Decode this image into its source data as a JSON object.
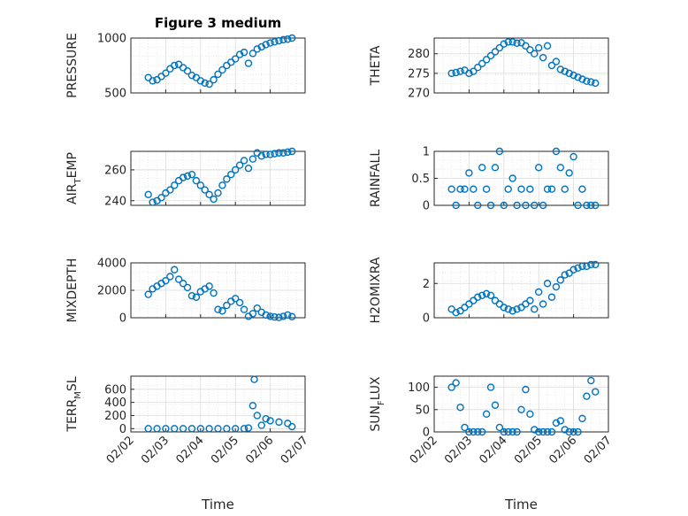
{
  "figure": {
    "title": "Figure 3 medium",
    "xlabel": "Time",
    "x_tick_labels": [
      "02/02",
      "02/03",
      "02/04",
      "02/05",
      "02/06",
      "02/07"
    ]
  },
  "colors": {
    "marker": "#0072BD",
    "axis": "#262626",
    "grid": "#dcdcdc"
  },
  "chart_data": [
    {
      "type": "scatter",
      "title": "Figure 3 medium",
      "ylabel": "PRESSURE",
      "ylabel_sub": "",
      "xlabel": "",
      "ylim": [
        500,
        1000
      ],
      "yticks": [
        500,
        1000
      ],
      "grid": true,
      "x": [
        "02/02 12:00",
        "02/02 15:00",
        "02/02 18:00",
        "02/02 21:00",
        "02/03 00:00",
        "02/03 03:00",
        "02/03 06:00",
        "02/03 09:00",
        "02/03 12:00",
        "02/03 15:00",
        "02/03 18:00",
        "02/03 21:00",
        "02/04 00:00",
        "02/04 03:00",
        "02/04 06:00",
        "02/04 09:00",
        "02/04 12:00",
        "02/04 15:00",
        "02/04 18:00",
        "02/04 21:00",
        "02/05 00:00",
        "02/05 03:00",
        "02/05 06:00",
        "02/05 09:00",
        "02/05 12:00",
        "02/05 15:00",
        "02/05 18:00",
        "02/05 21:00",
        "02/06 00:00",
        "02/06 03:00",
        "02/06 06:00",
        "02/06 09:00",
        "02/06 12:00",
        "02/06 15:00"
      ],
      "y": [
        640,
        610,
        620,
        650,
        680,
        720,
        750,
        760,
        730,
        700,
        660,
        640,
        610,
        590,
        580,
        620,
        670,
        710,
        750,
        780,
        810,
        850,
        870,
        770,
        860,
        900,
        920,
        940,
        955,
        965,
        975,
        985,
        990,
        1000
      ]
    },
    {
      "type": "scatter",
      "title": "",
      "ylabel": "THETA",
      "ylabel_sub": "",
      "xlabel": "",
      "ylim": [
        270,
        284
      ],
      "yticks": [
        270,
        275,
        280
      ],
      "grid": true,
      "x": [
        "02/02 12:00",
        "02/02 15:00",
        "02/02 18:00",
        "02/02 21:00",
        "02/03 00:00",
        "02/03 03:00",
        "02/03 06:00",
        "02/03 09:00",
        "02/03 12:00",
        "02/03 15:00",
        "02/03 18:00",
        "02/03 21:00",
        "02/04 00:00",
        "02/04 03:00",
        "02/04 06:00",
        "02/04 09:00",
        "02/04 12:00",
        "02/04 15:00",
        "02/04 18:00",
        "02/04 21:00",
        "02/05 00:00",
        "02/05 03:00",
        "02/05 06:00",
        "02/05 09:00",
        "02/05 12:00",
        "02/05 15:00",
        "02/05 18:00",
        "02/05 21:00",
        "02/06 00:00",
        "02/06 03:00",
        "02/06 06:00",
        "02/06 09:00",
        "02/06 12:00",
        "02/06 15:00"
      ],
      "y": [
        275,
        275.2,
        275.5,
        275.8,
        275,
        275.5,
        276.5,
        277.5,
        278.5,
        279.5,
        280.5,
        281.5,
        282.5,
        283,
        283,
        282.7,
        282.8,
        282,
        281,
        280,
        281.5,
        279,
        282,
        277,
        278,
        276,
        275.5,
        275,
        274.5,
        274,
        273.5,
        273,
        272.8,
        272.5
      ]
    },
    {
      "type": "scatter",
      "title": "",
      "ylabel": "AIR",
      "ylabel_sub": "T",
      "ylabel_rest": "EMP",
      "xlabel": "",
      "ylim": [
        237,
        272
      ],
      "yticks": [
        240,
        260
      ],
      "grid": true,
      "x": [
        "02/02 12:00",
        "02/02 15:00",
        "02/02 18:00",
        "02/02 21:00",
        "02/03 00:00",
        "02/03 03:00",
        "02/03 06:00",
        "02/03 09:00",
        "02/03 12:00",
        "02/03 15:00",
        "02/03 18:00",
        "02/03 21:00",
        "02/04 00:00",
        "02/04 03:00",
        "02/04 06:00",
        "02/04 09:00",
        "02/04 12:00",
        "02/04 15:00",
        "02/04 18:00",
        "02/04 21:00",
        "02/05 00:00",
        "02/05 03:00",
        "02/05 06:00",
        "02/05 09:00",
        "02/05 12:00",
        "02/05 15:00",
        "02/05 18:00",
        "02/05 21:00",
        "02/06 00:00",
        "02/06 03:00",
        "02/06 06:00",
        "02/06 09:00",
        "02/06 12:00",
        "02/06 15:00"
      ],
      "y": [
        244,
        239,
        240,
        242,
        245,
        247,
        250,
        253,
        255,
        256,
        257,
        253,
        250,
        247,
        244,
        241,
        245,
        250,
        254,
        257,
        260,
        263,
        266,
        261,
        267,
        271,
        269,
        270,
        270,
        270.5,
        271,
        271,
        271.5,
        272
      ]
    },
    {
      "type": "scatter",
      "title": "",
      "ylabel": "RAINFALL",
      "ylabel_sub": "",
      "xlabel": "",
      "ylim": [
        0,
        1
      ],
      "yticks": [
        0,
        0.5,
        1
      ],
      "grid": true,
      "x": [
        "02/02 12:00",
        "02/02 15:00",
        "02/02 18:00",
        "02/02 21:00",
        "02/03 00:00",
        "02/03 03:00",
        "02/03 06:00",
        "02/03 09:00",
        "02/03 12:00",
        "02/03 15:00",
        "02/03 18:00",
        "02/03 21:00",
        "02/04 00:00",
        "02/04 03:00",
        "02/04 06:00",
        "02/04 09:00",
        "02/04 12:00",
        "02/04 15:00",
        "02/04 18:00",
        "02/04 21:00",
        "02/05 00:00",
        "02/05 03:00",
        "02/05 06:00",
        "02/05 09:00",
        "02/05 12:00",
        "02/05 15:00",
        "02/05 18:00",
        "02/05 21:00",
        "02/06 00:00",
        "02/06 03:00",
        "02/06 06:00",
        "02/06 09:00",
        "02/06 12:00",
        "02/06 15:00"
      ],
      "y": [
        0.3,
        0,
        0.3,
        0.3,
        0.6,
        0.3,
        0,
        0.7,
        0.3,
        0,
        0.7,
        1,
        0,
        0.3,
        0.5,
        0,
        0.3,
        0,
        0.3,
        0,
        0.7,
        0,
        0.3,
        0.3,
        1,
        0.7,
        0.3,
        0.6,
        0.9,
        0,
        0.3,
        0,
        0,
        0
      ]
    },
    {
      "type": "scatter",
      "title": "",
      "ylabel": "MIXDEPTH",
      "ylabel_sub": "",
      "xlabel": "",
      "ylim": [
        0,
        4000
      ],
      "yticks": [
        0,
        2000,
        4000
      ],
      "grid": true,
      "x": [
        "02/02 12:00",
        "02/02 15:00",
        "02/02 18:00",
        "02/02 21:00",
        "02/03 00:00",
        "02/03 03:00",
        "02/03 06:00",
        "02/03 09:00",
        "02/03 12:00",
        "02/03 15:00",
        "02/03 18:00",
        "02/03 21:00",
        "02/04 00:00",
        "02/04 03:00",
        "02/04 06:00",
        "02/04 09:00",
        "02/04 12:00",
        "02/04 15:00",
        "02/04 18:00",
        "02/04 21:00",
        "02/05 00:00",
        "02/05 03:00",
        "02/05 06:00",
        "02/05 09:00",
        "02/05 12:00",
        "02/05 15:00",
        "02/05 18:00",
        "02/05 21:00",
        "02/06 00:00",
        "02/06 03:00",
        "02/06 06:00",
        "02/06 09:00",
        "02/06 12:00",
        "02/06 15:00"
      ],
      "y": [
        1700,
        2100,
        2300,
        2500,
        2700,
        3000,
        3500,
        2800,
        2500,
        2200,
        1600,
        1500,
        1900,
        2100,
        2300,
        1800,
        600,
        500,
        900,
        1200,
        1400,
        1100,
        600,
        100,
        300,
        700,
        400,
        200,
        100,
        50,
        20,
        100,
        200,
        80
      ]
    },
    {
      "type": "scatter",
      "title": "",
      "ylabel": "H2OMIXRA",
      "ylabel_sub": "",
      "xlabel": "",
      "ylim": [
        0,
        3.2
      ],
      "yticks": [
        0,
        2
      ],
      "grid": true,
      "x": [
        "02/02 12:00",
        "02/02 15:00",
        "02/02 18:00",
        "02/02 21:00",
        "02/03 00:00",
        "02/03 03:00",
        "02/03 06:00",
        "02/03 09:00",
        "02/03 12:00",
        "02/03 15:00",
        "02/03 18:00",
        "02/03 21:00",
        "02/04 00:00",
        "02/04 03:00",
        "02/04 06:00",
        "02/04 09:00",
        "02/04 12:00",
        "02/04 15:00",
        "02/04 18:00",
        "02/04 21:00",
        "02/05 00:00",
        "02/05 03:00",
        "02/05 06:00",
        "02/05 09:00",
        "02/05 12:00",
        "02/05 15:00",
        "02/05 18:00",
        "02/05 21:00",
        "02/06 00:00",
        "02/06 03:00",
        "02/06 06:00",
        "02/06 09:00",
        "02/06 12:00",
        "02/06 15:00"
      ],
      "y": [
        0.5,
        0.3,
        0.4,
        0.6,
        0.8,
        1,
        1.2,
        1.3,
        1.4,
        1.3,
        1,
        0.8,
        0.6,
        0.5,
        0.4,
        0.5,
        0.6,
        0.8,
        1,
        0.5,
        1.5,
        0.8,
        2,
        1.2,
        1.8,
        2.2,
        2.5,
        2.6,
        2.8,
        2.9,
        3,
        3,
        3.1,
        3.1
      ]
    },
    {
      "type": "scatter",
      "title": "",
      "ylabel": "TERR",
      "ylabel_sub": "M",
      "ylabel_rest": "SL",
      "xlabel": "Time",
      "ylim": [
        -50,
        800
      ],
      "yticks": [
        0,
        200,
        400,
        600
      ],
      "grid": true,
      "x": [
        "02/02 12:00",
        "02/02 18:00",
        "02/03 00:00",
        "02/03 06:00",
        "02/03 12:00",
        "02/03 18:00",
        "02/04 00:00",
        "02/04 06:00",
        "02/04 12:00",
        "02/04 18:00",
        "02/05 00:00",
        "02/05 06:00",
        "02/05 09:00",
        "02/05 12:00",
        "02/05 13:00",
        "02/05 15:00",
        "02/05 18:00",
        "02/05 21:00",
        "02/06 00:00",
        "02/06 06:00",
        "02/06 12:00",
        "02/06 15:00"
      ],
      "y": [
        0,
        0,
        0,
        0,
        0,
        0,
        0,
        0,
        0,
        0,
        0,
        0,
        10,
        350,
        750,
        200,
        50,
        150,
        120,
        100,
        80,
        30
      ]
    },
    {
      "type": "scatter",
      "title": "",
      "ylabel": "SUN",
      "ylabel_sub": "F",
      "ylabel_rest": "LUX",
      "xlabel": "Time",
      "ylim": [
        0,
        125
      ],
      "yticks": [
        0,
        50,
        100
      ],
      "grid": true,
      "x": [
        "02/02 12:00",
        "02/02 15:00",
        "02/02 18:00",
        "02/02 21:00",
        "02/03 00:00",
        "02/03 03:00",
        "02/03 06:00",
        "02/03 09:00",
        "02/03 12:00",
        "02/03 15:00",
        "02/03 18:00",
        "02/03 21:00",
        "02/04 00:00",
        "02/04 03:00",
        "02/04 06:00",
        "02/04 09:00",
        "02/04 12:00",
        "02/04 15:00",
        "02/04 18:00",
        "02/04 21:00",
        "02/05 00:00",
        "02/05 03:00",
        "02/05 06:00",
        "02/05 09:00",
        "02/05 12:00",
        "02/05 15:00",
        "02/05 18:00",
        "02/05 21:00",
        "02/06 00:00",
        "02/06 03:00",
        "02/06 06:00",
        "02/06 09:00",
        "02/06 12:00",
        "02/06 15:00"
      ],
      "y": [
        100,
        110,
        55,
        10,
        0,
        0,
        0,
        0,
        40,
        100,
        60,
        10,
        0,
        0,
        0,
        0,
        50,
        95,
        40,
        5,
        0,
        0,
        0,
        0,
        20,
        25,
        5,
        0,
        0,
        0,
        30,
        80,
        115,
        90
      ]
    }
  ]
}
